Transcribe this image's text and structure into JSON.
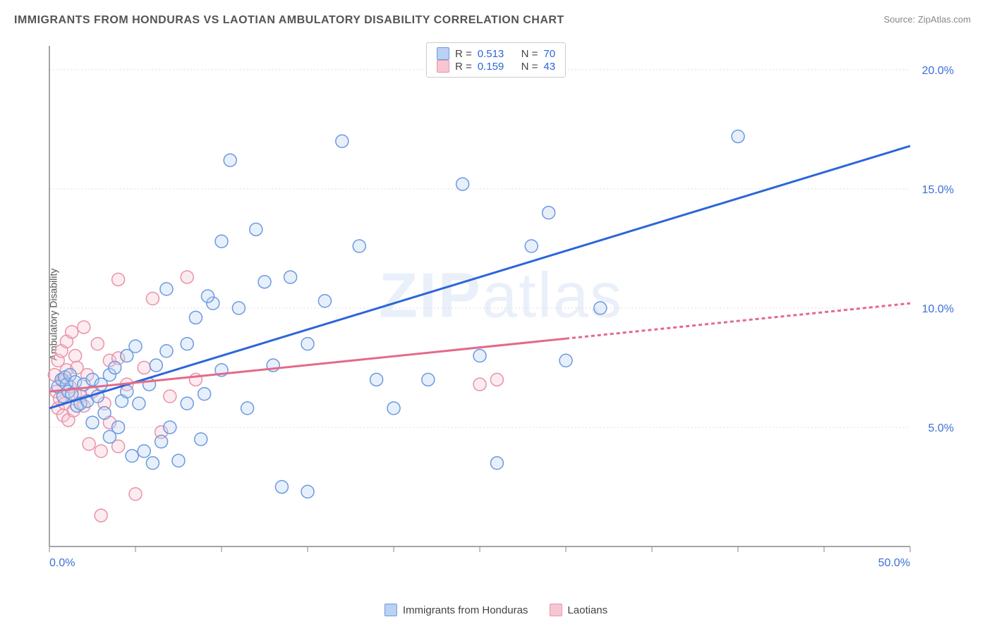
{
  "title": "IMMIGRANTS FROM HONDURAS VS LAOTIAN AMBULATORY DISABILITY CORRELATION CHART",
  "source_label": "Source: ",
  "source_value": "ZipAtlas.com",
  "y_axis_label": "Ambulatory Disability",
  "watermark_bold": "ZIP",
  "watermark_rest": "atlas",
  "legend_top": {
    "r_label": "R =",
    "n_label": "N =",
    "series1": {
      "r": "0.513",
      "n": "70"
    },
    "series2": {
      "r": "0.159",
      "n": "43"
    }
  },
  "legend_bottom": {
    "series1": "Immigrants from Honduras",
    "series2": "Laotians"
  },
  "chart": {
    "type": "scatter",
    "xlim": [
      0,
      50
    ],
    "ylim": [
      0,
      21
    ],
    "x_ticks": [
      0,
      5,
      10,
      15,
      20,
      25,
      30,
      35,
      40,
      45,
      50
    ],
    "x_tick_labels": {
      "0": "0.0%",
      "50": "50.0%"
    },
    "y_ticks": [
      5,
      10,
      15,
      20
    ],
    "y_tick_labels": {
      "5": "5.0%",
      "10": "10.0%",
      "15": "15.0%",
      "20": "20.0%"
    },
    "grid_color": "#dddddd",
    "axis_color": "#888888",
    "background_color": "#ffffff",
    "marker_radius": 9,
    "series": [
      {
        "name": "honduras",
        "fill": "#b9d1f2",
        "stroke": "#6a9ae0",
        "line_color": "#2b66d9",
        "line_dash": null,
        "regression": {
          "x1": 0,
          "y1": 5.8,
          "x2": 50,
          "y2": 16.8
        },
        "points": [
          [
            0.5,
            6.7
          ],
          [
            0.7,
            7.0
          ],
          [
            0.8,
            6.3
          ],
          [
            0.9,
            7.1
          ],
          [
            1.0,
            6.8
          ],
          [
            1.1,
            6.5
          ],
          [
            1.2,
            7.2
          ],
          [
            1.3,
            6.4
          ],
          [
            1.5,
            6.9
          ],
          [
            1.6,
            5.9
          ],
          [
            1.8,
            6.0
          ],
          [
            2.0,
            6.8
          ],
          [
            2.2,
            6.1
          ],
          [
            2.5,
            7.0
          ],
          [
            2.8,
            6.3
          ],
          [
            3.0,
            6.8
          ],
          [
            3.2,
            5.6
          ],
          [
            3.5,
            4.6
          ],
          [
            3.5,
            7.2
          ],
          [
            4.0,
            5.0
          ],
          [
            4.2,
            6.1
          ],
          [
            4.5,
            6.5
          ],
          [
            4.8,
            3.8
          ],
          [
            5.0,
            8.4
          ],
          [
            5.2,
            6.0
          ],
          [
            5.5,
            4.0
          ],
          [
            5.8,
            6.8
          ],
          [
            6.0,
            3.5
          ],
          [
            6.2,
            7.6
          ],
          [
            6.5,
            4.4
          ],
          [
            6.8,
            8.2
          ],
          [
            7.0,
            5.0
          ],
          [
            7.5,
            3.6
          ],
          [
            8.0,
            8.5
          ],
          [
            8.0,
            6.0
          ],
          [
            8.5,
            9.6
          ],
          [
            8.8,
            4.5
          ],
          [
            9.0,
            6.4
          ],
          [
            9.5,
            10.2
          ],
          [
            10.0,
            12.8
          ],
          [
            10.0,
            7.4
          ],
          [
            10.5,
            16.2
          ],
          [
            11.0,
            10.0
          ],
          [
            11.5,
            5.8
          ],
          [
            12.0,
            13.3
          ],
          [
            12.5,
            11.1
          ],
          [
            13.0,
            7.6
          ],
          [
            13.5,
            2.5
          ],
          [
            14.0,
            11.3
          ],
          [
            15.0,
            8.5
          ],
          [
            15.0,
            2.3
          ],
          [
            16.0,
            10.3
          ],
          [
            17.0,
            17.0
          ],
          [
            18.0,
            12.6
          ],
          [
            19.0,
            7.0
          ],
          [
            20.0,
            5.8
          ],
          [
            22.0,
            7.0
          ],
          [
            24.0,
            15.2
          ],
          [
            25.0,
            8.0
          ],
          [
            26.0,
            3.5
          ],
          [
            28.0,
            12.6
          ],
          [
            29.0,
            14.0
          ],
          [
            30.0,
            7.8
          ],
          [
            32.0,
            10.0
          ],
          [
            40.0,
            17.2
          ],
          [
            2.5,
            5.2
          ],
          [
            3.8,
            7.5
          ],
          [
            6.8,
            10.8
          ],
          [
            9.2,
            10.5
          ],
          [
            4.5,
            8.0
          ]
        ]
      },
      {
        "name": "laotians",
        "fill": "#f6c7d2",
        "stroke": "#e893aa",
        "line_color": "#e36a8a",
        "line_dash": "5 4",
        "dash_from_x": 30,
        "regression": {
          "x1": 0,
          "y1": 6.5,
          "x2": 50,
          "y2": 10.2
        },
        "points": [
          [
            0.3,
            7.2
          ],
          [
            0.4,
            6.5
          ],
          [
            0.5,
            5.8
          ],
          [
            0.5,
            7.8
          ],
          [
            0.6,
            6.2
          ],
          [
            0.7,
            8.2
          ],
          [
            0.8,
            5.5
          ],
          [
            0.8,
            7.0
          ],
          [
            0.9,
            6.0
          ],
          [
            1.0,
            7.4
          ],
          [
            1.0,
            8.6
          ],
          [
            1.1,
            5.3
          ],
          [
            1.2,
            6.7
          ],
          [
            1.3,
            9.0
          ],
          [
            1.4,
            5.7
          ],
          [
            1.5,
            6.4
          ],
          [
            1.5,
            8.0
          ],
          [
            1.6,
            7.5
          ],
          [
            1.8,
            6.3
          ],
          [
            2.0,
            9.2
          ],
          [
            2.0,
            5.9
          ],
          [
            2.2,
            7.2
          ],
          [
            2.3,
            4.3
          ],
          [
            2.5,
            6.5
          ],
          [
            2.8,
            8.5
          ],
          [
            3.0,
            4.0
          ],
          [
            3.2,
            6.0
          ],
          [
            3.5,
            7.8
          ],
          [
            3.5,
            5.2
          ],
          [
            4.0,
            11.2
          ],
          [
            4.0,
            4.2
          ],
          [
            4.5,
            6.8
          ],
          [
            5.0,
            2.2
          ],
          [
            5.5,
            7.5
          ],
          [
            6.0,
            10.4
          ],
          [
            6.5,
            4.8
          ],
          [
            7.0,
            6.3
          ],
          [
            8.0,
            11.3
          ],
          [
            8.5,
            7.0
          ],
          [
            3.0,
            1.3
          ],
          [
            25.0,
            6.8
          ],
          [
            26.0,
            7.0
          ],
          [
            4.0,
            7.9
          ]
        ]
      }
    ]
  }
}
